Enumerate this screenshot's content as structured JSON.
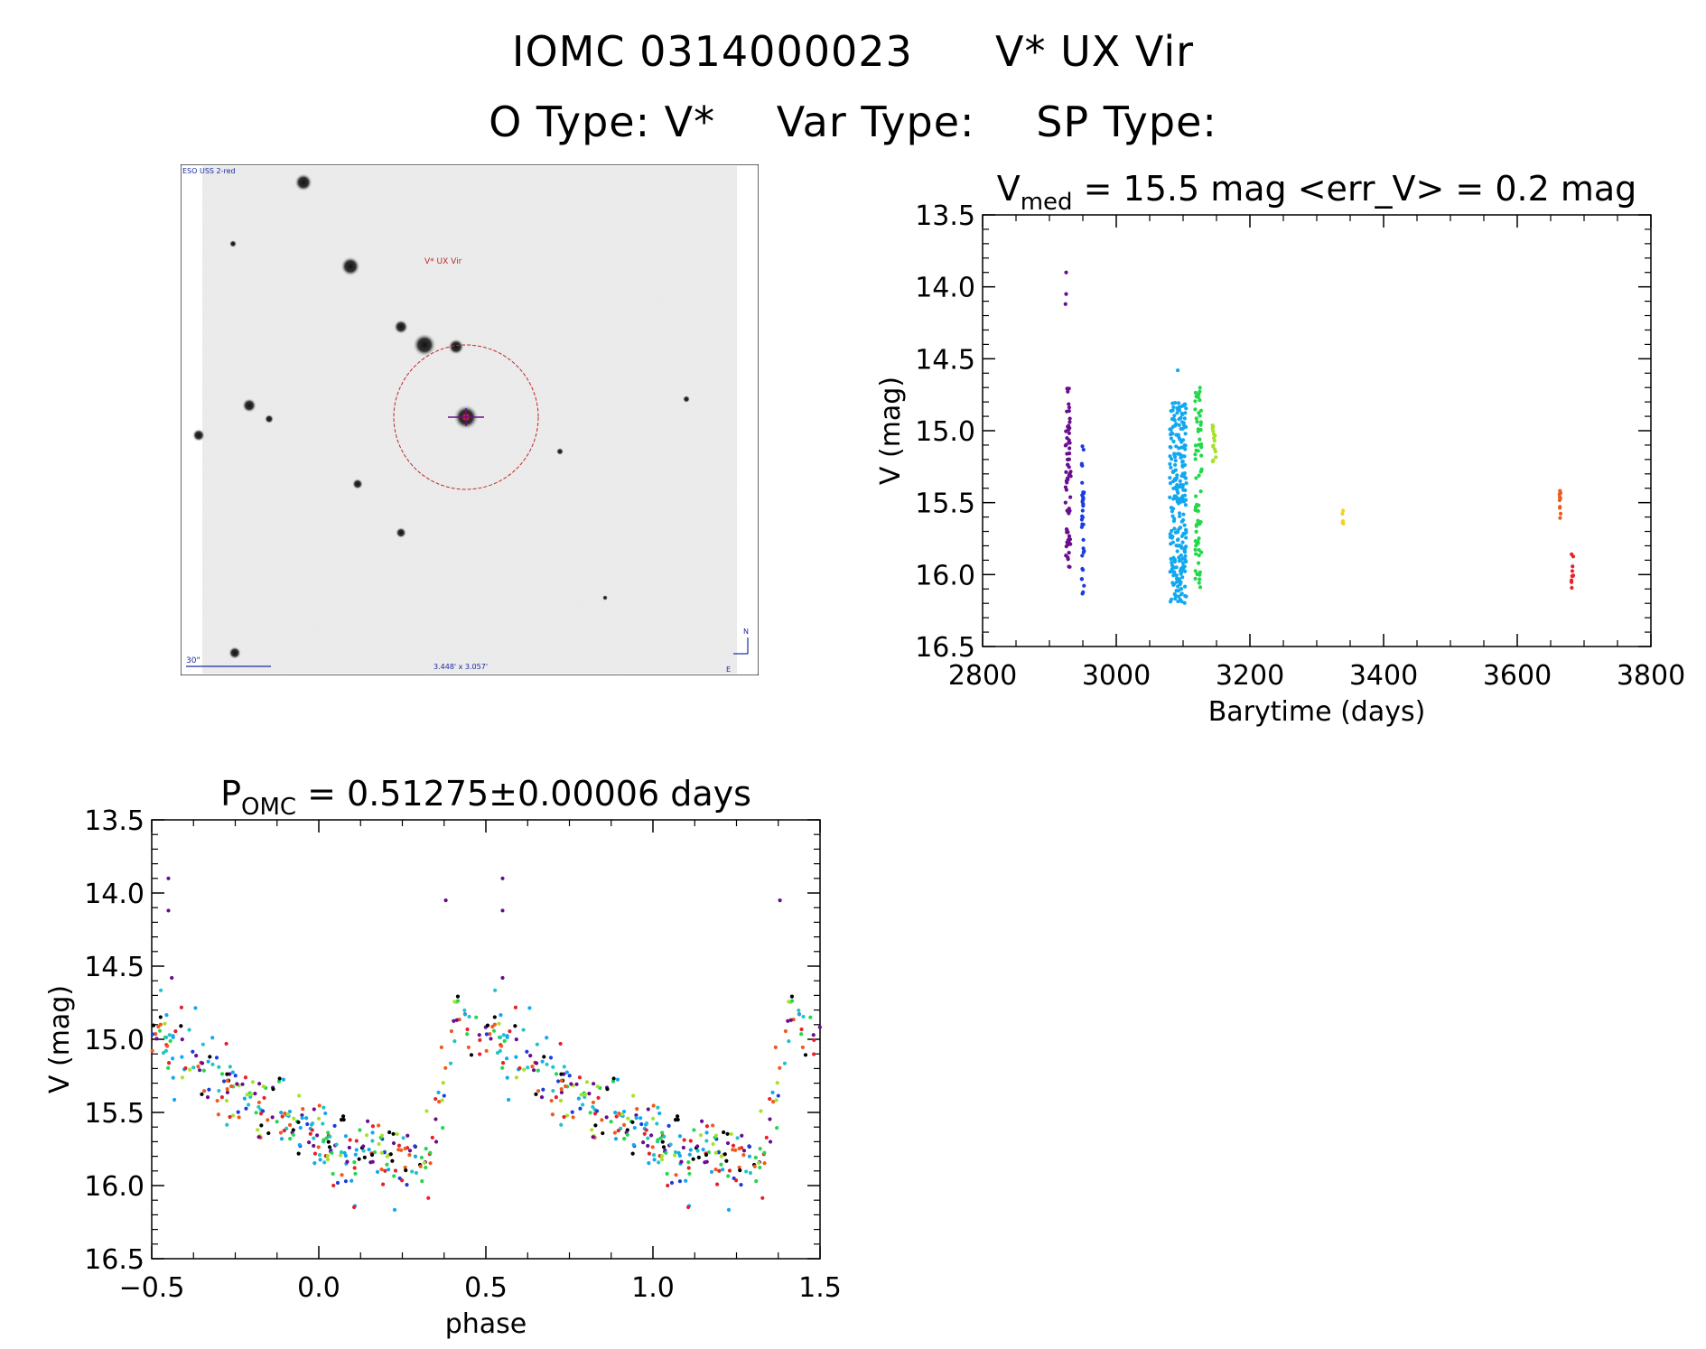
{
  "header": {
    "title_id": "IOMC 0314000023",
    "title_name": "V* UX Vir",
    "otype": "O Type: V*",
    "vartype": "Var Type:",
    "sptype": "SP Type:"
  },
  "finding_chart": {
    "survey_label": "ESO USS 2-red",
    "target_label": "V* UX Vir",
    "scale_label": "30\"",
    "fov_label": "3.448' x 3.057'",
    "north_label": "N",
    "east_label": "E",
    "colors": {
      "circle": "#c0282a",
      "annotation": "#1a2aa0",
      "target": "#c0282a"
    }
  },
  "chart_data": [
    {
      "id": "lightcurve",
      "type": "scatter",
      "title_main": "V",
      "title_sub": "med",
      "title_rest": " = 15.5 mag <err_V> = 0.2 mag",
      "xlabel": "Barytime (days)",
      "ylabel": "V (mag)",
      "xlim": [
        2800,
        3800
      ],
      "ylim": [
        16.5,
        13.5
      ],
      "y_inverted": true,
      "xticks": [
        "2800",
        "3000",
        "3200",
        "3400",
        "3600",
        "3800"
      ],
      "yticks": [
        "13.5",
        "14.0",
        "14.5",
        "15.0",
        "15.5",
        "16.0",
        "16.5"
      ],
      "series": [
        {
          "color": "#6a0d8f",
          "x_range": [
            2924,
            2932
          ],
          "y_range": [
            14.7,
            15.95
          ],
          "count": 70,
          "extra": [
            [
              2925,
              13.9
            ],
            [
              2925,
              14.05
            ],
            [
              2924,
              14.12
            ]
          ]
        },
        {
          "color": "#1a3de0",
          "x_range": [
            2948,
            2952
          ],
          "y_range": [
            15.1,
            16.15
          ],
          "count": 35,
          "extra": []
        },
        {
          "color": "#12a8f0",
          "x_range": [
            3080,
            3105
          ],
          "y_range": [
            14.8,
            16.2
          ],
          "count": 260,
          "extra": [
            [
              3092,
              14.58
            ]
          ]
        },
        {
          "color": "#22d84a",
          "x_range": [
            3118,
            3128
          ],
          "y_range": [
            14.7,
            16.15
          ],
          "count": 70,
          "extra": []
        },
        {
          "color": "#a6e22a",
          "x_range": [
            3144,
            3149
          ],
          "y_range": [
            14.95,
            15.25
          ],
          "count": 15,
          "extra": []
        },
        {
          "color": "#f2d21a",
          "x_range": [
            3337,
            3340
          ],
          "y_range": [
            15.55,
            15.65
          ],
          "count": 5,
          "extra": []
        },
        {
          "color": "#f05a1a",
          "x_range": [
            3662,
            3665
          ],
          "y_range": [
            15.4,
            15.62
          ],
          "count": 10,
          "extra": []
        },
        {
          "color": "#e8202a",
          "x_range": [
            3681,
            3684
          ],
          "y_range": [
            15.85,
            16.1
          ],
          "count": 10,
          "extra": []
        }
      ]
    },
    {
      "id": "phase",
      "type": "scatter",
      "title_main": "P",
      "title_sub": "OMC",
      "title_rest": " = 0.51275±0.00006 days",
      "xlabel": "phase",
      "ylabel": "V (mag)",
      "xlim": [
        -0.5,
        1.5
      ],
      "ylim": [
        16.5,
        13.5
      ],
      "y_inverted": true,
      "xticks": [
        "−0.5",
        "0.0",
        "0.5",
        "1.0",
        "1.5"
      ],
      "yticks": [
        "13.5",
        "14.0",
        "14.5",
        "15.0",
        "15.5",
        "16.0",
        "16.5"
      ],
      "period_days": 0.51275,
      "curve_shape": {
        "max_phase": 0.42,
        "max_mag": 14.8,
        "min_phase": 0.05,
        "min_mag": 15.8,
        "scatter": 0.12
      },
      "colors": [
        "#6a0d8f",
        "#1a3de0",
        "#12a8f0",
        "#22c3c8",
        "#22d84a",
        "#a6e22a",
        "#f05a1a",
        "#e8202a",
        "#000000"
      ],
      "outliers": [
        [
          -0.45,
          13.9
        ],
        [
          -0.45,
          14.12
        ],
        [
          0.38,
          14.05
        ],
        [
          0.55,
          13.9
        ],
        [
          0.55,
          14.12
        ],
        [
          0.55,
          14.58
        ],
        [
          -0.44,
          14.58
        ],
        [
          1.38,
          14.05
        ]
      ]
    }
  ]
}
